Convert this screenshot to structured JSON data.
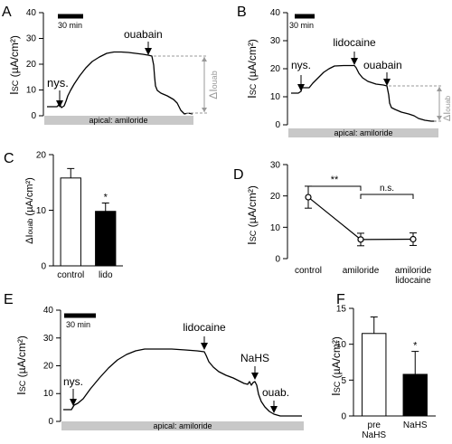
{
  "panels": {
    "A": {
      "letter": "A",
      "ylabel_main": "I",
      "ylabel_sub": "SC",
      "ylabel_unit": " (µA/cm²)",
      "yticks": [
        "0",
        "10",
        "20",
        "30",
        "40"
      ],
      "scale_label": "30 min",
      "drugs": [
        "nys.",
        "ouabain"
      ],
      "delta_main": "ΔI",
      "delta_sub": "ouab",
      "bar_label": "apical: amiloride"
    },
    "B": {
      "letter": "B",
      "ylabel_main": "I",
      "ylabel_sub": "SC",
      "ylabel_unit": " (µA/cm²)",
      "yticks": [
        "0",
        "10",
        "20",
        "30",
        "40"
      ],
      "scale_label": "30 min",
      "drugs": [
        "nys.",
        "lidocaine",
        "ouabain"
      ],
      "delta_main": "ΔI",
      "delta_sub": "ouab",
      "bar_label": "apical: amiloride"
    },
    "C": {
      "letter": "C",
      "ylabel_main": "ΔI",
      "ylabel_sub": "ouab",
      "ylabel_unit": " (µA/cm²)",
      "star": "*"
    },
    "D": {
      "letter": "D",
      "ylabel_main": "I",
      "ylabel_sub": "SC",
      "ylabel_unit": " (µA/cm²)",
      "sig1": "**",
      "sig2": "n.s."
    },
    "E": {
      "letter": "E",
      "ylabel_main": "I",
      "ylabel_sub": "SC",
      "ylabel_unit": " (µA/cm²)",
      "yticks": [
        "0",
        "10",
        "20",
        "30",
        "40"
      ],
      "scale_label": "30 min",
      "drugs": [
        "nys.",
        "lidocaine",
        "NaHS",
        "ouab."
      ],
      "bar_label": "apical: amiloride"
    },
    "F": {
      "letter": "F",
      "ylabel_main": "I",
      "ylabel_sub": "SC",
      "ylabel_unit": " (µA/cm²)",
      "star": "*"
    }
  },
  "chart_data": [
    {
      "panel": "C",
      "type": "bar",
      "categories": [
        "control",
        "lido"
      ],
      "values": [
        15.8,
        9.8
      ],
      "errors": [
        1.7,
        1.5
      ],
      "ylim": [
        0,
        20
      ],
      "yticks": [
        0,
        10,
        20
      ],
      "fills": [
        "#ffffff",
        "#000000"
      ]
    },
    {
      "panel": "D",
      "type": "line",
      "categories": [
        "control",
        "amiloride",
        "amiloride\nlidocaine"
      ],
      "category_lines": [
        [
          "control"
        ],
        [
          "amiloride"
        ],
        [
          "amiloride",
          "lidocaine"
        ]
      ],
      "values": [
        19.6,
        6.1,
        6.2
      ],
      "errors": [
        3.5,
        2.0,
        2.0
      ],
      "ylim": [
        0,
        30
      ],
      "yticks": [
        0,
        10,
        20,
        30
      ]
    },
    {
      "panel": "F",
      "type": "bar",
      "categories": [
        "pre\nNaHS",
        "NaHS"
      ],
      "category_lines": [
        [
          "pre",
          "NaHS"
        ],
        [
          "NaHS"
        ]
      ],
      "values": [
        11.5,
        5.8
      ],
      "errors": [
        2.3,
        3.2
      ],
      "ylim": [
        0,
        15
      ],
      "yticks": [
        0,
        5,
        10,
        15
      ],
      "fills": [
        "#ffffff",
        "#000000"
      ]
    }
  ]
}
